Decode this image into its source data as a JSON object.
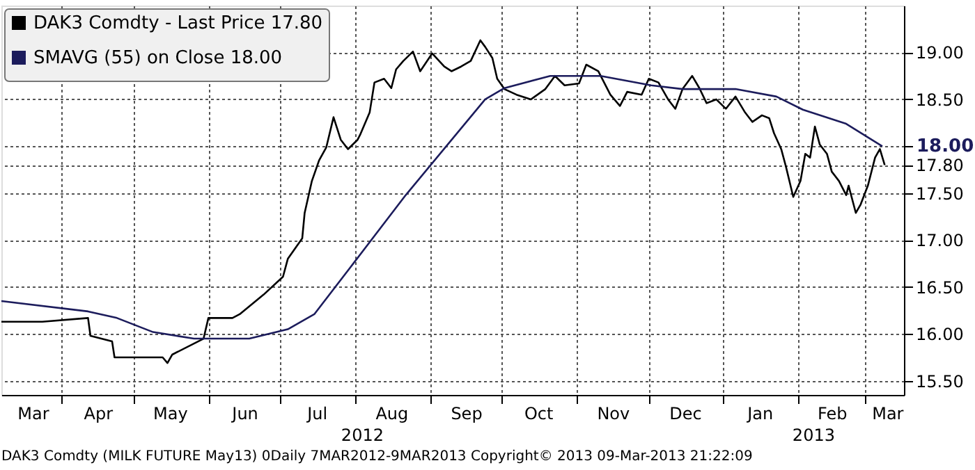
{
  "chart_data": {
    "type": "line",
    "legend": "top left",
    "grid": true,
    "xlim": [
      "2012-03-07",
      "2013-03-17"
    ],
    "ylim": [
      15.35,
      19.5
    ],
    "xticks": [
      {
        "value": "2012-03-20",
        "label": "Mar"
      },
      {
        "value": "2012-04-16",
        "label": "Apr"
      },
      {
        "value": "2012-05-16",
        "label": "May"
      },
      {
        "value": "2012-06-16",
        "label": "Jun"
      },
      {
        "value": "2012-07-16",
        "label": "Jul"
      },
      {
        "value": "2012-08-16",
        "label": "Aug"
      },
      {
        "value": "2012-09-16",
        "label": "Sep"
      },
      {
        "value": "2012-10-16",
        "label": "Oct"
      },
      {
        "value": "2012-11-16",
        "label": "Nov"
      },
      {
        "value": "2012-12-16",
        "label": "Dec"
      },
      {
        "value": "2013-01-16",
        "label": "Jan"
      },
      {
        "value": "2013-02-15",
        "label": "Feb"
      },
      {
        "value": "2013-03-10",
        "label": "Mar"
      },
      {
        "value": "2012-04-01",
        "label": null
      },
      {
        "value": "2012-05-01",
        "label": null
      },
      {
        "value": "2012-06-01",
        "label": null
      },
      {
        "value": "2012-07-01",
        "label": null
      },
      {
        "value": "2012-08-01",
        "label": null
      },
      {
        "value": "2012-09-01",
        "label": null
      },
      {
        "value": "2012-10-01",
        "label": null
      },
      {
        "value": "2012-11-01",
        "label": null
      },
      {
        "value": "2012-12-01",
        "label": null
      },
      {
        "value": "2013-01-01",
        "label": null
      },
      {
        "value": "2013-02-01",
        "label": null
      },
      {
        "value": "2013-03-01",
        "label": null
      }
    ],
    "yticks": [
      {
        "value": 15.5,
        "label": "15.50"
      },
      {
        "value": 16,
        "label": "16.00"
      },
      {
        "value": 16.5,
        "label": "16.50"
      },
      {
        "value": 17,
        "label": "17.00"
      },
      {
        "value": 17.5,
        "label": "17.50"
      },
      {
        "value": 17.8,
        "label": "17.80"
      },
      {
        "value": 18,
        "label": null
      },
      {
        "value": 18.5,
        "label": "18.50"
      },
      {
        "value": 19,
        "label": "19.00"
      }
    ],
    "series": [
      {
        "name": "DAK3 Comdty - Last Price 17.80",
        "color": "#000000",
        "x": [
          "2012-03-07",
          "2012-03-24",
          "2012-04-12",
          "2012-04-13",
          "2012-04-22",
          "2012-04-23",
          "2012-05-13",
          "2012-05-15",
          "2012-05-17",
          "2012-05-30",
          "2012-06-01",
          "2012-06-11",
          "2012-06-14",
          "2012-06-24",
          "2012-07-02",
          "2012-07-04",
          "2012-07-10",
          "2012-07-11",
          "2012-07-14",
          "2012-07-17",
          "2012-07-20",
          "2012-07-23",
          "2012-07-26",
          "2012-07-29",
          "2012-08-02",
          "2012-08-03",
          "2012-08-07",
          "2012-08-09",
          "2012-08-13",
          "2012-08-16",
          "2012-08-18",
          "2012-08-21",
          "2012-08-25",
          "2012-08-28",
          "2012-09-02",
          "2012-09-07",
          "2012-09-10",
          "2012-09-14",
          "2012-09-18",
          "2012-09-22",
          "2012-09-24",
          "2012-09-27",
          "2012-09-29",
          "2012-10-02",
          "2012-10-07",
          "2012-10-13",
          "2012-10-19",
          "2012-10-23",
          "2012-10-27",
          "2012-11-02",
          "2012-11-05",
          "2012-11-10",
          "2012-11-15",
          "2012-11-19",
          "2012-11-22",
          "2012-11-28",
          "2012-12-01",
          "2012-12-05",
          "2012-12-09",
          "2012-12-12",
          "2012-12-15",
          "2012-12-19",
          "2012-12-22",
          "2012-12-25",
          "2012-12-29",
          "2013-01-02",
          "2013-01-06",
          "2013-01-10",
          "2013-01-13",
          "2013-01-17",
          "2013-01-20",
          "2013-01-22",
          "2013-01-25",
          "2013-01-27",
          "2013-01-30",
          "2013-02-02",
          "2013-02-04",
          "2013-02-06",
          "2013-02-08",
          "2013-02-10",
          "2013-02-13",
          "2013-02-15",
          "2013-02-18",
          "2013-02-21",
          "2013-02-22",
          "2013-02-25",
          "2013-02-27",
          "2013-03-02",
          "2013-03-05",
          "2013-03-07",
          "2013-03-09"
        ],
        "values": [
          16.13,
          16.13,
          16.17,
          15.98,
          15.92,
          15.75,
          15.75,
          15.69,
          15.78,
          15.95,
          16.17,
          16.17,
          16.21,
          16.42,
          16.61,
          16.8,
          17.02,
          17.29,
          17.63,
          17.85,
          17.99,
          18.31,
          18.07,
          17.97,
          18.07,
          18.12,
          18.36,
          18.68,
          18.72,
          18.62,
          18.82,
          18.91,
          19.01,
          18.8,
          18.99,
          18.85,
          18.8,
          18.85,
          18.91,
          19.13,
          19.06,
          18.94,
          18.72,
          18.61,
          18.55,
          18.5,
          18.61,
          18.75,
          18.65,
          18.67,
          18.87,
          18.8,
          18.55,
          18.43,
          18.58,
          18.55,
          18.72,
          18.68,
          18.5,
          18.4,
          18.61,
          18.75,
          18.62,
          18.46,
          18.5,
          18.4,
          18.53,
          18.36,
          18.26,
          18.33,
          18.3,
          18.14,
          17.97,
          17.78,
          17.46,
          17.63,
          17.92,
          17.88,
          18.21,
          18.02,
          17.92,
          17.73,
          17.63,
          17.48,
          17.58,
          17.29,
          17.38,
          17.58,
          17.88,
          17.97,
          17.8
        ]
      },
      {
        "name": "SMAVG (55) on Close 18.00",
        "color": "#1c1c5c",
        "x": [
          "2012-03-07",
          "2012-04-12",
          "2012-04-24",
          "2012-05-09",
          "2012-05-26",
          "2012-06-18",
          "2012-07-04",
          "2012-07-15",
          "2012-07-30",
          "2012-08-22",
          "2012-09-24",
          "2012-10-02",
          "2012-10-21",
          "2012-11-11",
          "2012-12-02",
          "2012-12-15",
          "2013-01-06",
          "2013-01-23",
          "2013-02-03",
          "2013-02-21",
          "2013-03-08"
        ],
        "values": [
          16.35,
          16.24,
          16.17,
          16.02,
          15.95,
          15.95,
          16.05,
          16.21,
          16.71,
          17.48,
          18.5,
          18.62,
          18.75,
          18.75,
          18.65,
          18.61,
          18.61,
          18.53,
          18.39,
          18.24,
          18.0
        ]
      }
    ],
    "annotations": [
      {
        "text": "18.00",
        "x": "2013-03-08",
        "y": 18.0
      },
      "2012",
      "2013",
      "DAK3 Comdty (MILK FUTURE May13) 0Daily 7MAR2012-9MAR2013 Copyright© 2013 09-Mar-2013 21:22:09"
    ]
  }
}
